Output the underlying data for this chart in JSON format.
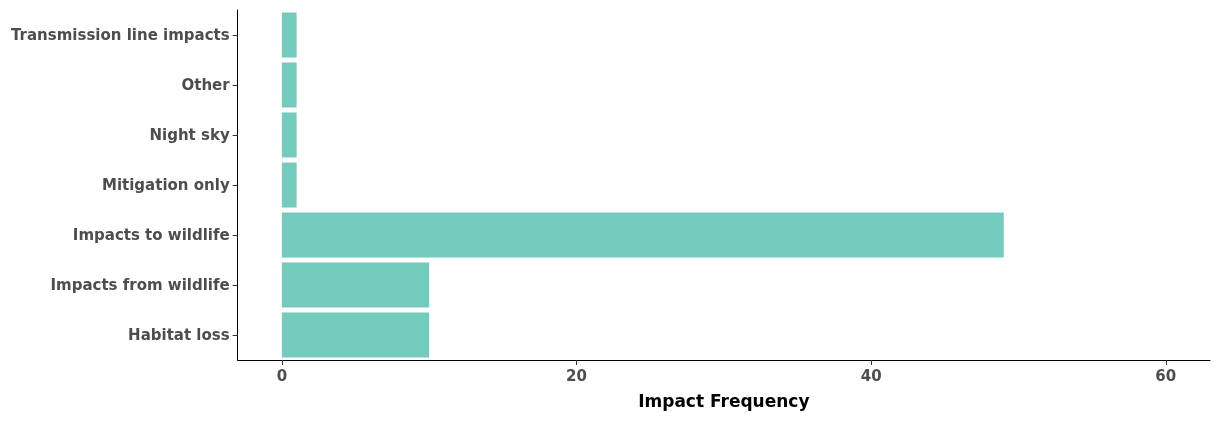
{
  "chart_data": {
    "type": "bar",
    "orientation": "horizontal",
    "xlabel": "Impact Frequency",
    "categories": [
      "Transmission line impacts",
      "Other",
      "Night sky",
      "Mitigation only",
      "Impacts to wildlife",
      "Impacts from wildlife",
      "Habitat loss"
    ],
    "values": [
      1,
      1,
      1,
      1,
      49,
      10,
      10
    ],
    "color": "#73cabd",
    "xlim": [
      -3,
      63
    ],
    "xticks": [
      0,
      20,
      40,
      60
    ],
    "grid": false
  }
}
